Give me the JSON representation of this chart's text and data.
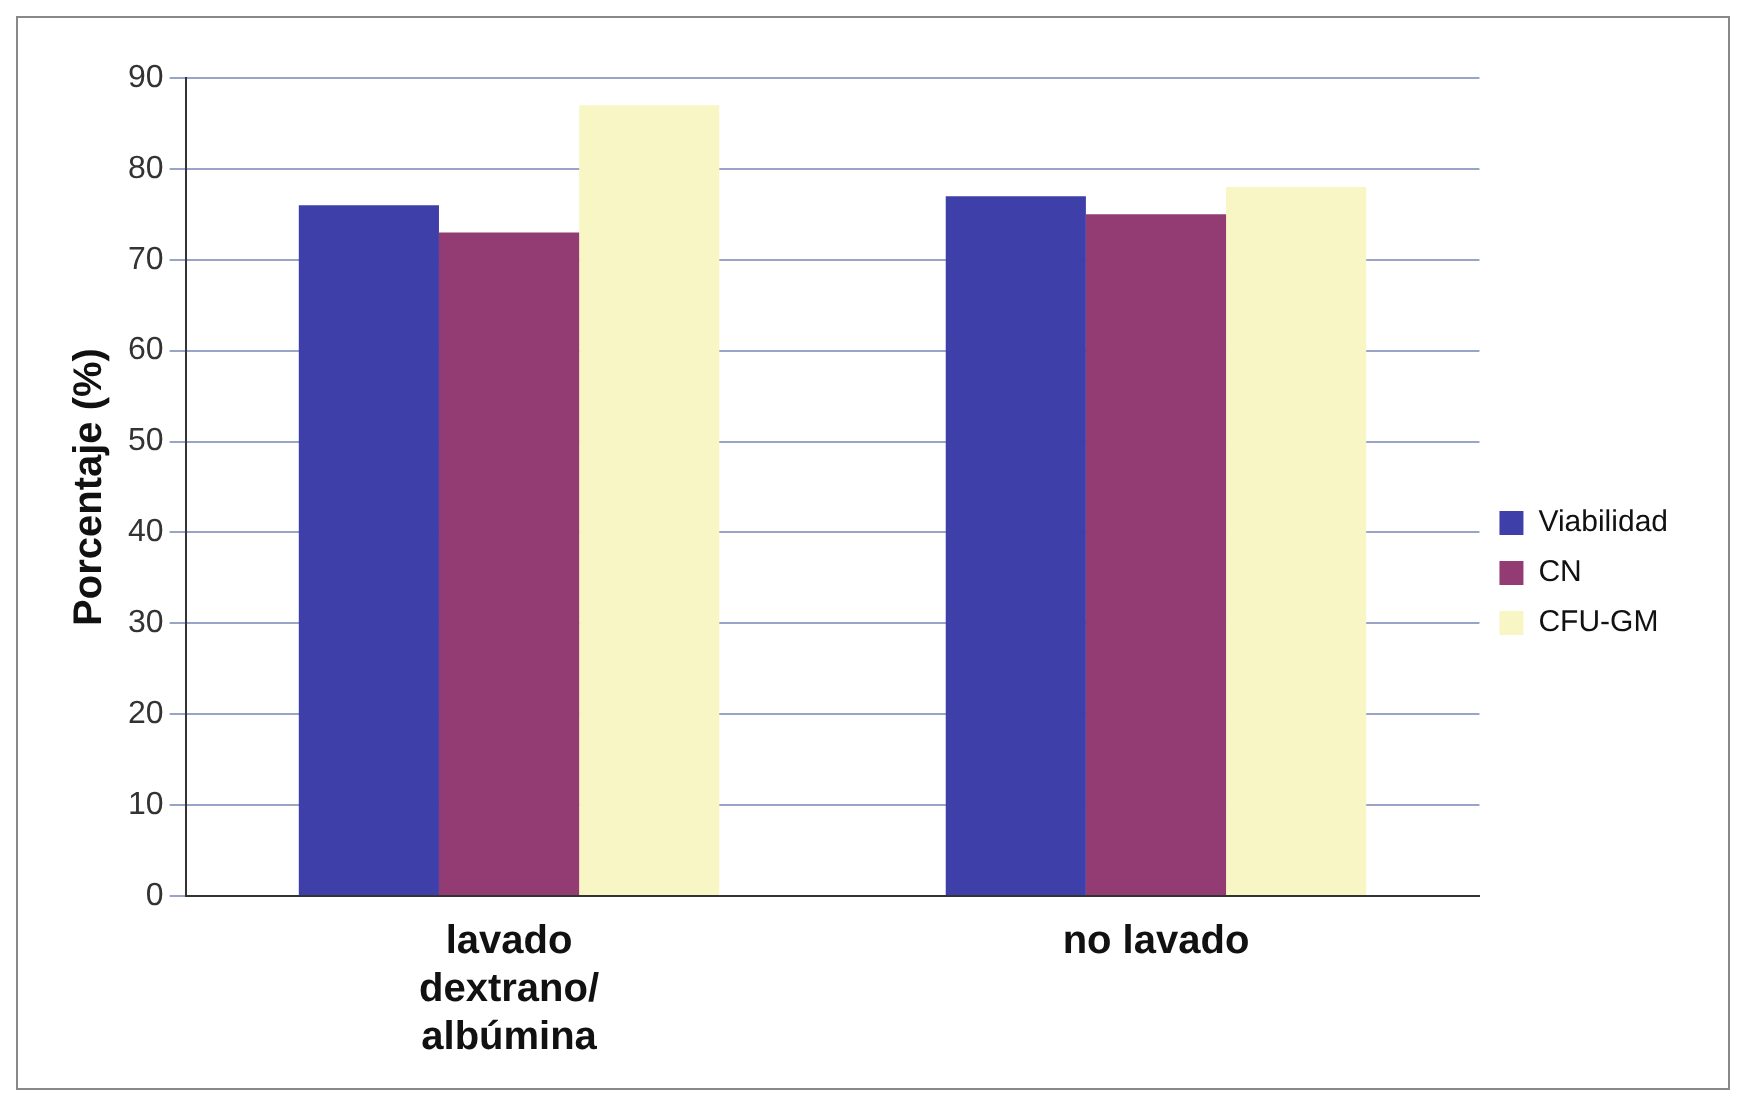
{
  "chart_data": {
    "type": "bar",
    "ylabel": "Porcentaje (%)",
    "categories": [
      "lavado dextrano/ albúmina",
      "no lavado"
    ],
    "series": [
      {
        "name": "Viabilidad",
        "color": "#3f3faa",
        "values": [
          76,
          77
        ]
      },
      {
        "name": "CN",
        "color": "#933b73",
        "values": [
          73,
          75
        ]
      },
      {
        "name": "CFU-GM",
        "color": "#f8f6c4",
        "values": [
          87,
          78
        ]
      }
    ],
    "ylim": [
      0,
      90
    ],
    "yticks": [
      0,
      10,
      20,
      30,
      40,
      50,
      60,
      70,
      80,
      90
    ],
    "grid": "y",
    "legend": "right"
  }
}
